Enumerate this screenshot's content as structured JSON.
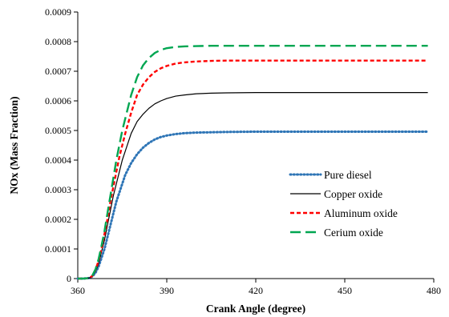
{
  "chart_data": {
    "type": "line",
    "title": "",
    "xlabel": "Crank Angle (degree)",
    "ylabel": "NOx (Mass Fraction)",
    "xlim": [
      360,
      480
    ],
    "ylim": [
      0,
      0.0009
    ],
    "x_ticks": [
      360,
      390,
      420,
      450,
      480
    ],
    "y_ticks": [
      0,
      0.0001,
      0.0002,
      0.0003,
      0.0004,
      0.0005,
      0.0006,
      0.0007,
      0.0008,
      0.0009
    ],
    "x_tick_labels": [
      "360",
      "390",
      "420",
      "450",
      "480"
    ],
    "y_tick_labels": [
      "0",
      "0.0001",
      "0.0002",
      "0.0003",
      "0.0004",
      "0.0005",
      "0.0006",
      "0.0007",
      "0.0008",
      "0.0009"
    ],
    "grid": false,
    "legend_position": "bottom-right",
    "series": [
      {
        "name": "Pure diesel",
        "color": "#2E75B6",
        "style": "dotted",
        "x": [
          360,
          362,
          364,
          365,
          366,
          367,
          368,
          369,
          370,
          371,
          372,
          373,
          374,
          375,
          376,
          378,
          380,
          382,
          384,
          386,
          388,
          390,
          393,
          396,
          400,
          405,
          410,
          420,
          430,
          440,
          450,
          460,
          470,
          478
        ],
        "y": [
          0,
          0,
          2e-06,
          8e-06,
          2e-05,
          4e-05,
          7e-05,
          0.0001,
          0.00014,
          0.00018,
          0.00022,
          0.00026,
          0.00029,
          0.00032,
          0.00035,
          0.00039,
          0.00042,
          0.000442,
          0.000458,
          0.00047,
          0.000478,
          0.000483,
          0.000488,
          0.000491,
          0.000493,
          0.000494,
          0.000495,
          0.000496,
          0.000496,
          0.000496,
          0.000496,
          0.000496,
          0.000496,
          0.000496
        ]
      },
      {
        "name": "Copper oxide",
        "color": "#000000",
        "style": "solid",
        "x": [
          360,
          362,
          364,
          365,
          366,
          367,
          368,
          369,
          370,
          371,
          372,
          373,
          374,
          375,
          376,
          378,
          380,
          382,
          384,
          386,
          388,
          390,
          393,
          396,
          400,
          405,
          410,
          420,
          430,
          440,
          450,
          460,
          470,
          478
        ],
        "y": [
          0,
          0,
          2e-06,
          1e-05,
          2.5e-05,
          5e-05,
          9e-05,
          0.00013,
          0.00018,
          0.00023,
          0.00028,
          0.00032,
          0.00036,
          0.0004,
          0.00043,
          0.00049,
          0.00053,
          0.000555,
          0.000575,
          0.00059,
          0.0006,
          0.000608,
          0.000616,
          0.00062,
          0.000624,
          0.000626,
          0.000627,
          0.000628,
          0.000628,
          0.000628,
          0.000628,
          0.000628,
          0.000628,
          0.000628
        ]
      },
      {
        "name": "Aluminum oxide",
        "color": "#FF0000",
        "style": "dashed",
        "x": [
          360,
          362,
          364,
          365,
          366,
          367,
          368,
          369,
          370,
          371,
          372,
          373,
          374,
          375,
          376,
          378,
          380,
          382,
          384,
          386,
          388,
          390,
          393,
          396,
          400,
          405,
          410,
          420,
          430,
          440,
          450,
          460,
          470,
          478
        ],
        "y": [
          0,
          0,
          2e-06,
          1e-05,
          3e-05,
          6e-05,
          0.0001,
          0.00015,
          0.0002,
          0.00026,
          0.00031,
          0.00036,
          0.00041,
          0.00045,
          0.00049,
          0.00056,
          0.00062,
          0.000655,
          0.00068,
          0.000698,
          0.00071,
          0.000718,
          0.000726,
          0.00073,
          0.000733,
          0.000735,
          0.000736,
          0.000736,
          0.000736,
          0.000736,
          0.000736,
          0.000736,
          0.000736,
          0.000736
        ]
      },
      {
        "name": "Cerium oxide",
        "color": "#00A651",
        "style": "longdash",
        "x": [
          360,
          362,
          364,
          365,
          366,
          367,
          368,
          369,
          370,
          371,
          372,
          373,
          374,
          375,
          376,
          378,
          380,
          382,
          384,
          386,
          388,
          390,
          393,
          396,
          400,
          405,
          410,
          420,
          430,
          440,
          450,
          460,
          470,
          478
        ],
        "y": [
          0,
          0,
          2e-06,
          1.2e-05,
          3.2e-05,
          6.5e-05,
          0.00011,
          0.00016,
          0.00022,
          0.00028,
          0.00034,
          0.0004,
          0.00045,
          0.0005,
          0.00054,
          0.00062,
          0.00068,
          0.00072,
          0.000745,
          0.000762,
          0.000772,
          0.000778,
          0.000782,
          0.000784,
          0.000785,
          0.000786,
          0.000786,
          0.000786,
          0.000786,
          0.000786,
          0.000786,
          0.000786,
          0.000786,
          0.000786
        ]
      }
    ]
  }
}
